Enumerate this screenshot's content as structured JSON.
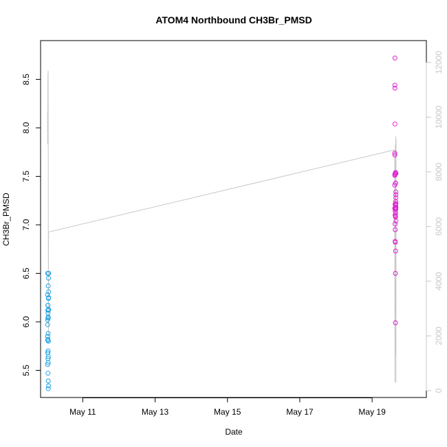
{
  "chart_data": {
    "type": "scatter",
    "title": "ATOM4 Northbound CH3Br_PMSD",
    "xlabel": "Date",
    "ylabel": "CH3Br_PMSD",
    "xlim": [
      "2016-05-09T20:00",
      "2016-05-20T12:00"
    ],
    "ylim": [
      5.22,
      8.9
    ],
    "y2lim": [
      -250,
      12800
    ],
    "x_ticks": [
      {
        "value": "2016-05-11",
        "label": "May 11"
      },
      {
        "value": "2016-05-13",
        "label": "May 13"
      },
      {
        "value": "2016-05-15",
        "label": "May 15"
      },
      {
        "value": "2016-05-17",
        "label": "May 17"
      },
      {
        "value": "2016-05-19",
        "label": "May 19"
      }
    ],
    "y_ticks": [
      "5.5",
      "6.0",
      "6.5",
      "7.0",
      "7.5",
      "8.0",
      "8.5"
    ],
    "y2_ticks": [
      "0",
      "2000",
      "4000",
      "6000",
      "8000",
      "10000",
      "12000"
    ],
    "grid": false,
    "series": [
      {
        "color": "#1ba4e6",
        "marker": "open-circle",
        "points": [
          [
            "2016-05-10T00:38",
            6.28
          ],
          [
            "2016-05-10T00:40",
            5.97
          ],
          [
            "2016-05-10T00:41",
            6.02
          ],
          [
            "2016-05-10T00:42",
            5.56
          ],
          [
            "2016-05-10T00:43",
            5.85
          ],
          [
            "2016-05-10T00:45",
            5.81
          ],
          [
            "2016-05-10T00:46",
            6.5
          ],
          [
            "2016-05-10T00:47",
            5.68
          ],
          [
            "2016-05-10T00:49",
            6.12
          ],
          [
            "2016-05-10T00:50",
            5.82
          ],
          [
            "2016-05-10T00:51",
            6.17
          ],
          [
            "2016-05-10T00:52",
            5.68
          ],
          [
            "2016-05-10T00:54",
            6.17
          ],
          [
            "2016-05-10T00:55",
            5.47
          ],
          [
            "2016-05-10T00:56",
            6.04
          ],
          [
            "2016-05-10T00:57",
            5.62
          ],
          [
            "2016-05-10T00:59",
            6.09
          ],
          [
            "2016-05-10T01:00",
            5.88
          ],
          [
            "2016-05-10T01:01",
            5.7
          ],
          [
            "2016-05-10T01:02",
            6.05
          ],
          [
            "2016-05-10T01:04",
            5.31
          ],
          [
            "2016-05-10T01:05",
            5.58
          ],
          [
            "2016-05-10T01:06",
            6.37
          ],
          [
            "2016-05-10T01:07",
            5.39
          ],
          [
            "2016-05-10T01:09",
            6.04
          ],
          [
            "2016-05-10T01:10",
            5.64
          ],
          [
            "2016-05-10T01:11",
            6.12
          ],
          [
            "2016-05-10T01:12",
            5.8
          ],
          [
            "2016-05-10T01:14",
            6.45
          ],
          [
            "2016-05-10T01:15",
            6.24
          ],
          [
            "2016-05-10T01:16",
            6.13
          ],
          [
            "2016-05-10T01:17",
            5.34
          ],
          [
            "2016-05-10T01:19",
            6.25
          ],
          [
            "2016-05-10T01:20",
            6.5
          ],
          [
            "2016-05-10T01:21",
            6.31
          ]
        ]
      },
      {
        "color": "#e020d0",
        "marker": "open-circle",
        "points": [
          [
            "2016-05-19T15:00",
            7.17
          ],
          [
            "2016-05-19T15:01",
            7.41
          ],
          [
            "2016-05-19T15:02",
            7.51
          ],
          [
            "2016-05-19T15:03",
            7.72
          ],
          [
            "2016-05-19T15:04",
            7.74
          ],
          [
            "2016-05-19T15:06",
            8.44
          ],
          [
            "2016-05-19T15:07",
            7.52
          ],
          [
            "2016-05-19T15:08",
            8.72
          ],
          [
            "2016-05-19T15:09",
            8.41
          ],
          [
            "2016-05-19T15:10",
            8.04
          ],
          [
            "2016-05-19T15:12",
            7.17
          ],
          [
            "2016-05-19T15:13",
            7.1
          ],
          [
            "2016-05-19T15:14",
            7.01
          ],
          [
            "2016-05-19T15:15",
            7.21
          ],
          [
            "2016-05-19T15:16",
            6.83
          ],
          [
            "2016-05-19T15:18",
            7.53
          ],
          [
            "2016-05-19T15:19",
            7.14
          ],
          [
            "2016-05-19T15:20",
            7.21
          ],
          [
            "2016-05-19T15:21",
            6.95
          ],
          [
            "2016-05-19T15:22",
            6.82
          ],
          [
            "2016-05-19T15:24",
            7.21
          ],
          [
            "2016-05-19T15:25",
            7.18
          ],
          [
            "2016-05-19T15:26",
            7.53
          ],
          [
            "2016-05-19T15:27",
            6.5
          ],
          [
            "2016-05-19T15:28",
            7.09
          ],
          [
            "2016-05-19T15:30",
            5.99
          ],
          [
            "2016-05-19T15:31",
            7.43
          ],
          [
            "2016-05-19T15:32",
            7.16
          ],
          [
            "2016-05-19T15:33",
            7.54
          ],
          [
            "2016-05-19T15:34",
            7.08
          ],
          [
            "2016-05-19T15:36",
            6.73
          ],
          [
            "2016-05-19T15:37",
            7.2
          ],
          [
            "2016-05-19T15:38",
            7.12
          ],
          [
            "2016-05-19T15:39",
            7.43
          ],
          [
            "2016-05-19T15:40",
            7.24
          ],
          [
            "2016-05-19T15:42",
            7.16
          ],
          [
            "2016-05-19T15:43",
            7.34
          ],
          [
            "2016-05-19T15:44",
            7.31
          ],
          [
            "2016-05-19T15:45",
            7.28
          ],
          [
            "2016-05-19T15:46",
            7.22
          ],
          [
            "2016-05-19T15:48",
            7.18
          ],
          [
            "2016-05-19T15:49",
            7.04
          ],
          [
            "2016-05-19T15:50",
            7.53
          ]
        ]
      },
      {
        "color": "#c8c8c8",
        "marker": "line",
        "axis": "right",
        "points": [
          [
            "2016-05-10T00:38",
            10200
          ],
          [
            "2016-05-10T00:40",
            9200
          ],
          [
            "2016-05-10T00:42",
            9000
          ],
          [
            "2016-05-10T00:44",
            9300
          ],
          [
            "2016-05-10T00:47",
            10300
          ],
          [
            "2016-05-10T00:50",
            11200
          ],
          [
            "2016-05-10T00:54",
            11500
          ],
          [
            "2016-05-10T00:58",
            11600
          ],
          [
            "2016-05-10T01:02",
            11700
          ],
          [
            "2016-05-10T01:05",
            10500
          ],
          [
            "2016-05-10T01:08",
            8000
          ],
          [
            "2016-05-10T01:10",
            5000
          ],
          [
            "2016-05-10T01:12",
            3000
          ],
          [
            "2016-05-10T01:14",
            2000
          ],
          [
            "2016-05-10T01:16",
            4000
          ],
          [
            "2016-05-10T01:18",
            5800
          ],
          [
            "2016-05-10T01:19",
            5600
          ],
          [
            "2016-05-10T01:21",
            5800
          ],
          [
            "2016-05-19T14:30",
            8800
          ],
          [
            "2016-05-19T15:00",
            8700
          ],
          [
            "2016-05-19T15:02",
            7500
          ],
          [
            "2016-05-19T15:04",
            5000
          ],
          [
            "2016-05-19T15:06",
            3000
          ],
          [
            "2016-05-19T15:08",
            1500
          ],
          [
            "2016-05-19T15:10",
            400
          ],
          [
            "2016-05-19T15:12",
            300
          ],
          [
            "2016-05-19T15:14",
            2000
          ],
          [
            "2016-05-19T15:16",
            5000
          ],
          [
            "2016-05-19T15:18",
            7000
          ],
          [
            "2016-05-19T15:20",
            8500
          ],
          [
            "2016-05-19T15:22",
            9000
          ],
          [
            "2016-05-19T15:24",
            7000
          ],
          [
            "2016-05-19T15:26",
            5000
          ],
          [
            "2016-05-19T15:28",
            3000
          ],
          [
            "2016-05-19T15:30",
            1500
          ],
          [
            "2016-05-19T15:32",
            1300
          ],
          [
            "2016-05-19T15:34",
            3000
          ],
          [
            "2016-05-19T15:36",
            5500
          ],
          [
            "2016-05-19T15:38",
            7500
          ],
          [
            "2016-05-19T15:40",
            9000
          ],
          [
            "2016-05-19T15:42",
            9300
          ],
          [
            "2016-05-19T15:44",
            8000
          ],
          [
            "2016-05-19T15:46",
            6000
          ],
          [
            "2016-05-19T15:48",
            4000
          ],
          [
            "2016-05-19T15:49",
            2000
          ],
          [
            "2016-05-19T15:50",
            300
          ],
          [
            "2016-05-19T15:51",
            2000
          ],
          [
            "2016-05-19T15:52",
            5000
          ],
          [
            "2016-05-19T15:53",
            8000
          ],
          [
            "2016-05-19T15:54",
            9200
          ]
        ]
      }
    ]
  }
}
